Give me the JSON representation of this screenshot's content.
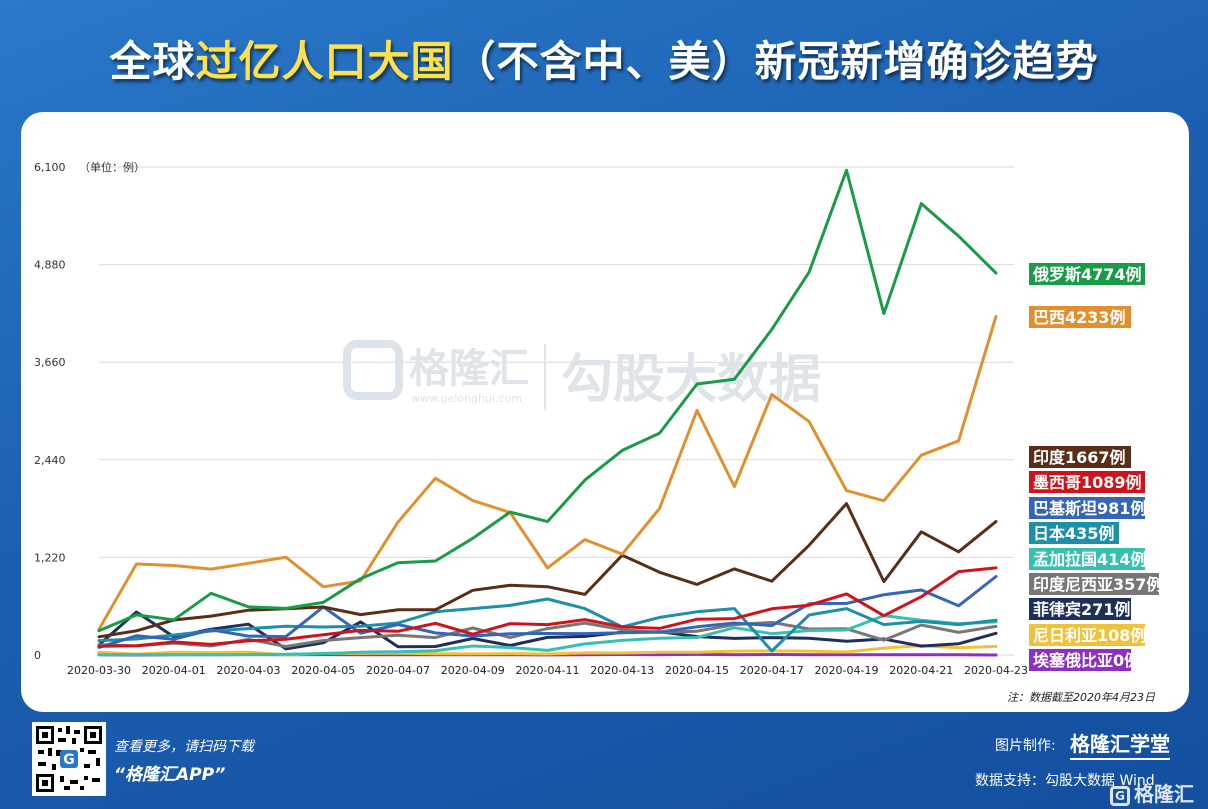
{
  "title": {
    "prefix": "全球",
    "highlight": "过亿人口大国",
    "suffix": "（不含中、美）新冠新增确诊趋势"
  },
  "watermark": {
    "brand": "格隆汇",
    "url": "www.gelonghui.com",
    "product": "勾股大数据"
  },
  "note": "注：数据截至2020年4月23日",
  "footer": {
    "scan_line": "查看更多，请扫码下载",
    "app_name": "“格隆汇APP”",
    "made_label": "图片制作:",
    "made_brand": "格隆汇学堂",
    "support": "数据支持：勾股大数据 Wind",
    "corner_brand": "格隆汇"
  },
  "colors": {
    "background": "#1c5fb0",
    "highlight": "#ffe14a"
  },
  "chart_data": {
    "type": "line",
    "unit_label": "（单位：例）",
    "ylim": [
      0,
      6100
    ],
    "y_ticks": [
      "0",
      "1,220",
      "2,440",
      "3,660",
      "4,880",
      "6,100"
    ],
    "x": [
      "2020-03-30",
      "2020-03-31",
      "2020-04-01",
      "2020-04-02",
      "2020-04-03",
      "2020-04-04",
      "2020-04-05",
      "2020-04-06",
      "2020-04-07",
      "2020-04-08",
      "2020-04-09",
      "2020-04-10",
      "2020-04-11",
      "2020-04-12",
      "2020-04-13",
      "2020-04-14",
      "2020-04-15",
      "2020-04-16",
      "2020-04-17",
      "2020-04-18",
      "2020-04-19",
      "2020-04-20",
      "2020-04-21",
      "2020-04-22",
      "2020-04-23"
    ],
    "x_tick_labels": [
      "2020-03-30",
      "2020-04-01",
      "2020-04-03",
      "2020-04-05",
      "2020-04-07",
      "2020-04-09",
      "2020-04-11",
      "2020-04-13",
      "2020-04-15",
      "2020-04-17",
      "2020-04-19",
      "2020-04-21",
      "2020-04-23"
    ],
    "grid": true,
    "series": [
      {
        "name": "俄罗斯",
        "label": "俄罗斯4774例",
        "color": "#1a9b48",
        "values": [
          302,
          501,
          440,
          771,
          601,
          582,
          658,
          954,
          1154,
          1175,
          1459,
          1786,
          1667,
          2186,
          2558,
          2774,
          3388,
          3448,
          4070,
          4785,
          6060,
          4268,
          5642,
          5236,
          4774
        ]
      },
      {
        "name": "巴西",
        "label": "巴西4233例",
        "color": "#e0902f",
        "values": [
          323,
          1138,
          1119,
          1074,
          1146,
          1222,
          852,
          926,
          1661,
          2210,
          1930,
          1781,
          1089,
          1442,
          1261,
          1832,
          3058,
          2105,
          3257,
          2917,
          2055,
          1927,
          2498,
          2678,
          4233
        ]
      },
      {
        "name": "印度",
        "label": "印度1667例",
        "color": "#5a2d17",
        "values": [
          227,
          303,
          437,
          486,
          560,
          579,
          600,
          505,
          565,
          565,
          809,
          871,
          854,
          758,
          1248,
          1034,
          883,
          1076,
          922,
          1371,
          1893,
          918,
          1540,
          1290,
          1667
        ]
      },
      {
        "name": "墨西哥",
        "label": "墨西哥1089例",
        "color": "#d0121b",
        "values": [
          110,
          115,
          163,
          132,
          178,
          197,
          254,
          307,
          296,
          396,
          260,
          393,
          380,
          442,
          353,
          332,
          448,
          455,
          577,
          622,
          764,
          491,
          729,
          1043,
          1089
        ]
      },
      {
        "name": "巴基斯坦",
        "label": "巴基斯坦981例",
        "color": "#3366b8",
        "values": [
          95,
          240,
          197,
          315,
          236,
          230,
          601,
          273,
          381,
          276,
          238,
          266,
          269,
          267,
          278,
          286,
          352,
          400,
          367,
          640,
          645,
          754,
          812,
          615,
          981
        ]
      },
      {
        "name": "日本",
        "label": "日本435例",
        "color": "#1e8fa8",
        "values": [
          180,
          200,
          250,
          300,
          330,
          360,
          350,
          360,
          400,
          540,
          580,
          620,
          700,
          580,
          350,
          470,
          540,
          580,
          50,
          500,
          580,
          380,
          420,
          380,
          435
        ]
      },
      {
        "name": "孟加拉国",
        "label": "孟加拉国414例",
        "color": "#35c0b0",
        "values": [
          2,
          5,
          2,
          3,
          5,
          9,
          18,
          35,
          41,
          54,
          112,
          94,
          58,
          139,
          182,
          209,
          219,
          341,
          266,
          306,
          312,
          492,
          434,
          390,
          414
        ]
      },
      {
        "name": "印度尼西亚",
        "label": "印度尼西亚357例",
        "color": "#777777",
        "values": [
          129,
          114,
          149,
          113,
          196,
          106,
          181,
          218,
          247,
          218,
          337,
          219,
          330,
          399,
          316,
          282,
          297,
          380,
          407,
          325,
          327,
          185,
          375,
          283,
          357
        ]
      },
      {
        "name": "菲律宾",
        "label": "菲律宾271例",
        "color": "#1e2f5a",
        "values": [
          128,
          538,
          227,
          322,
          385,
          76,
          152,
          414,
          104,
          106,
          206,
          119,
          220,
          233,
          284,
          291,
          230,
          207,
          218,
          209,
          172,
          200,
          111,
          140,
          271
        ]
      },
      {
        "name": "尼日利亚",
        "label": "尼日利亚108例",
        "color": "#f0c23a",
        "values": [
          34,
          10,
          35,
          30,
          36,
          0,
          22,
          20,
          22,
          16,
          14,
          17,
          13,
          26,
          25,
          34,
          35,
          49,
          51,
          49,
          38,
          86,
          117,
          91,
          108
        ]
      },
      {
        "name": "埃塞俄比亚",
        "label": "埃塞俄比亚0例",
        "color": "#8e2fc4",
        "values": [
          2,
          0,
          3,
          4,
          5,
          3,
          5,
          2,
          3,
          2,
          3,
          2,
          1,
          3,
          6,
          3,
          7,
          3,
          6,
          3,
          3,
          3,
          2,
          3,
          0
        ]
      }
    ]
  }
}
